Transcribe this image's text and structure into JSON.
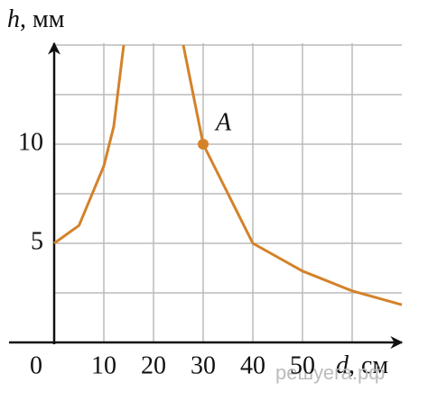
{
  "chart_data": {
    "type": "line",
    "y_label_var": "h",
    "y_label_unit": ", мм",
    "x_label_var": "d",
    "x_label_unit": ", см",
    "x": [
      0,
      5,
      10,
      12,
      14,
      20,
      26,
      30,
      35,
      40,
      50,
      60,
      70
    ],
    "series": [
      {
        "color": "#d4822a",
        "values": [
          5,
          5.9,
          8.9,
          10.9,
          15,
          null,
          15,
          10,
          7.5,
          5,
          3.6,
          2.6,
          1.9
        ]
      }
    ],
    "xlim": [
      0,
      70
    ],
    "ylim": [
      0,
      15
    ],
    "xticks": [
      0,
      10,
      20,
      30,
      40,
      50
    ],
    "yticks": [
      5,
      10
    ],
    "grid_x": [
      10,
      20,
      30,
      40,
      50,
      60
    ],
    "grid_y": [
      2.5,
      5,
      7.5,
      10,
      12.5,
      15
    ],
    "grid": true,
    "annotation": {
      "label": "A",
      "x": 30,
      "y": 10
    },
    "watermark": "решуега.рф"
  }
}
